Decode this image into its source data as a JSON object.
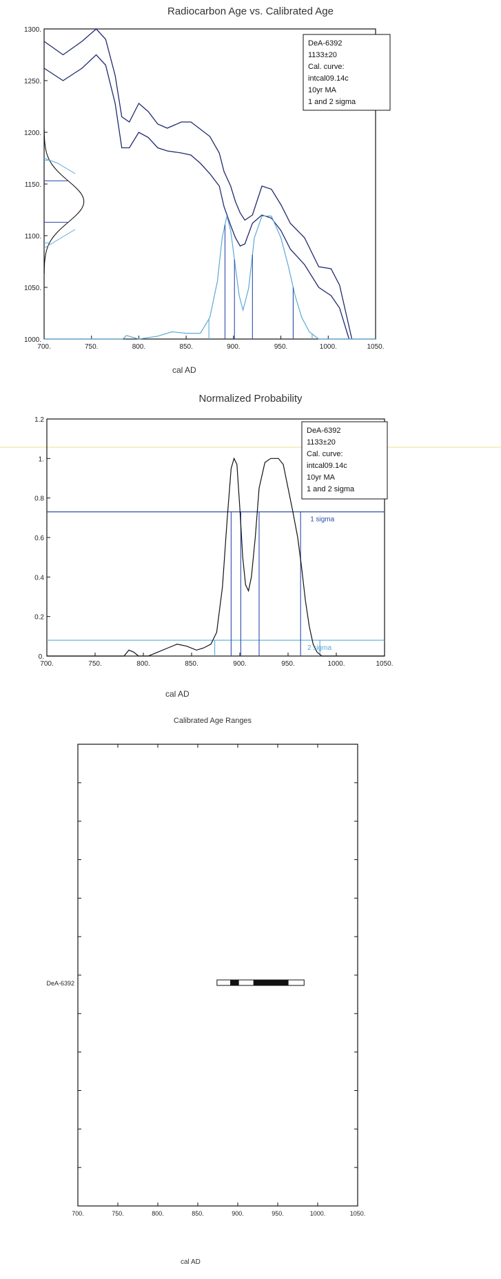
{
  "chart_data": [
    {
      "type": "line",
      "title": "Radiocarbon Age vs. Calibrated Age",
      "xlabel": "cal AD",
      "ylabel": "",
      "xlim": [
        700,
        1050
      ],
      "ylim": [
        1000,
        1300
      ],
      "x_ticks": [
        "700.",
        "750.",
        "800.",
        "850.",
        "900.",
        "950.",
        "1000.",
        "1050."
      ],
      "y_ticks": [
        "1000.",
        "1050.",
        "1100.",
        "1150.",
        "1200.",
        "1250.",
        "1300."
      ],
      "legend": [
        "DeA-6392",
        "1133±20",
        "Cal. curve:",
        "intcal09.14c",
        "10yr MA",
        "1 and 2 sigma"
      ],
      "legend_position": "top-right",
      "colors": {
        "curve": "#1f2a6e",
        "sigma1": "#2c4ba8",
        "sigma2": "#5aa9d6",
        "probability": "#111111"
      },
      "series": [
        {
          "values": [
            [
              700,
              1288
            ],
            [
              720,
              1275
            ],
            [
              740,
              1288
            ],
            [
              755,
              1300
            ],
            [
              765,
              1290
            ],
            [
              775,
              1255
            ],
            [
              782,
              1215
            ],
            [
              790,
              1210
            ],
            [
              800,
              1228
            ],
            [
              810,
              1220
            ],
            [
              820,
              1208
            ],
            [
              830,
              1204
            ],
            [
              845,
              1210
            ],
            [
              855,
              1210
            ],
            [
              865,
              1203
            ],
            [
              875,
              1196
            ],
            [
              885,
              1180
            ],
            [
              890,
              1162
            ],
            [
              897,
              1148
            ],
            [
              902,
              1133
            ],
            [
              907,
              1122
            ],
            [
              912,
              1115
            ],
            [
              920,
              1120
            ],
            [
              930,
              1148
            ],
            [
              940,
              1145
            ],
            [
              950,
              1130
            ],
            [
              960,
              1112
            ],
            [
              975,
              1098
            ],
            [
              990,
              1070
            ],
            [
              1003,
              1068
            ],
            [
              1012,
              1052
            ],
            [
              1025,
              1000
            ]
          ]
        },
        {
          "values": [
            [
              700,
              1262
            ],
            [
              720,
              1250
            ],
            [
              740,
              1262
            ],
            [
              755,
              1275
            ],
            [
              765,
              1265
            ],
            [
              775,
              1228
            ],
            [
              782,
              1185
            ],
            [
              790,
              1185
            ],
            [
              800,
              1200
            ],
            [
              810,
              1195
            ],
            [
              820,
              1185
            ],
            [
              830,
              1182
            ],
            [
              845,
              1180
            ],
            [
              855,
              1178
            ],
            [
              865,
              1170
            ],
            [
              875,
              1160
            ],
            [
              885,
              1148
            ],
            [
              890,
              1128
            ],
            [
              897,
              1110
            ],
            [
              902,
              1098
            ],
            [
              907,
              1090
            ],
            [
              912,
              1092
            ],
            [
              920,
              1112
            ],
            [
              930,
              1120
            ],
            [
              940,
              1117
            ],
            [
              950,
              1105
            ],
            [
              960,
              1087
            ],
            [
              975,
              1072
            ],
            [
              990,
              1050
            ],
            [
              1003,
              1042
            ],
            [
              1012,
              1030
            ],
            [
              1022,
              1000
            ]
          ]
        }
      ],
      "measured_distribution": {
        "mean": 1133,
        "sigma": 20,
        "peak_x": 742
      },
      "sigma_lines_y": {
        "one": [
          1153,
          1113
        ],
        "two": [
          1173,
          1093
        ]
      },
      "sigma_lines_x": {
        "one": [
          891,
          901,
          920,
          963
        ],
        "two": [
          874,
          983
        ]
      },
      "probability_curve": [
        [
          700,
          0
        ],
        [
          783,
          0
        ],
        [
          787,
          0.005
        ],
        [
          792,
          0.003
        ],
        [
          800,
          0
        ],
        [
          820,
          0.004
        ],
        [
          835,
          0.01
        ],
        [
          850,
          0.008
        ],
        [
          865,
          0.008
        ],
        [
          875,
          0.03
        ],
        [
          883,
          0.08
        ],
        [
          888,
          0.14
        ],
        [
          893,
          0.17
        ],
        [
          897,
          0.15
        ],
        [
          902,
          0.1
        ],
        [
          906,
          0.06
        ],
        [
          910,
          0.04
        ],
        [
          916,
          0.07
        ],
        [
          922,
          0.14
        ],
        [
          930,
          0.17
        ],
        [
          940,
          0.17
        ],
        [
          950,
          0.14
        ],
        [
          958,
          0.1
        ],
        [
          965,
          0.06
        ],
        [
          972,
          0.03
        ],
        [
          980,
          0.01
        ],
        [
          990,
          0
        ],
        [
          1050,
          0
        ]
      ]
    },
    {
      "type": "line",
      "title": "Normalized Probability",
      "xlabel": "cal AD",
      "ylabel": "",
      "xlim": [
        700,
        1050
      ],
      "ylim": [
        0,
        1.2
      ],
      "x_ticks": [
        "700.",
        "750.",
        "800.",
        "850.",
        "900.",
        "950.",
        "1000.",
        "1050."
      ],
      "y_ticks": [
        "0.",
        "0.2",
        "0.4",
        "0.6",
        "0.8",
        "1.",
        "1.2"
      ],
      "legend": [
        "DeA-6392",
        "1133±20",
        "Cal. curve:",
        "intcal09.14c",
        "10yr MA",
        "1 and 2 sigma"
      ],
      "legend_position": "top-right",
      "annotations": [
        "1 sigma",
        "2 sigma"
      ],
      "one_sigma_level": 0.73,
      "two_sigma_level": 0.08,
      "one_sigma_x": [
        891,
        901,
        920,
        963
      ],
      "two_sigma_x": [
        874,
        983
      ],
      "series": [
        {
          "values": [
            [
              700,
              0
            ],
            [
              780,
              0
            ],
            [
              785,
              0.03
            ],
            [
              790,
              0.02
            ],
            [
              795,
              0
            ],
            [
              805,
              0
            ],
            [
              815,
              0.02
            ],
            [
              825,
              0.04
            ],
            [
              835,
              0.06
            ],
            [
              845,
              0.05
            ],
            [
              855,
              0.03
            ],
            [
              862,
              0.04
            ],
            [
              870,
              0.06
            ],
            [
              876,
              0.12
            ],
            [
              882,
              0.35
            ],
            [
              887,
              0.7
            ],
            [
              891,
              0.95
            ],
            [
              894,
              1.0
            ],
            [
              897,
              0.97
            ],
            [
              900,
              0.75
            ],
            [
              903,
              0.5
            ],
            [
              906,
              0.36
            ],
            [
              909,
              0.33
            ],
            [
              912,
              0.4
            ],
            [
              916,
              0.6
            ],
            [
              920,
              0.85
            ],
            [
              926,
              0.98
            ],
            [
              932,
              1.0
            ],
            [
              940,
              1.0
            ],
            [
              945,
              0.97
            ],
            [
              950,
              0.85
            ],
            [
              955,
              0.73
            ],
            [
              960,
              0.6
            ],
            [
              964,
              0.45
            ],
            [
              968,
              0.28
            ],
            [
              972,
              0.15
            ],
            [
              976,
              0.06
            ],
            [
              980,
              0.02
            ],
            [
              985,
              0
            ],
            [
              1050,
              0
            ]
          ]
        }
      ]
    },
    {
      "type": "bar",
      "title": "Calibrated Age Ranges",
      "xlabel": "cal AD",
      "ylabel": "",
      "xlim": [
        700,
        1050
      ],
      "x_ticks": [
        "700.",
        "750.",
        "800.",
        "850.",
        "900.",
        "950.",
        "1000.",
        "1050."
      ],
      "categories": [
        "DeA-6392"
      ],
      "two_sigma_range": [
        874,
        983
      ],
      "one_sigma_ranges": [
        [
          891,
          901
        ],
        [
          920,
          963
        ]
      ]
    }
  ]
}
